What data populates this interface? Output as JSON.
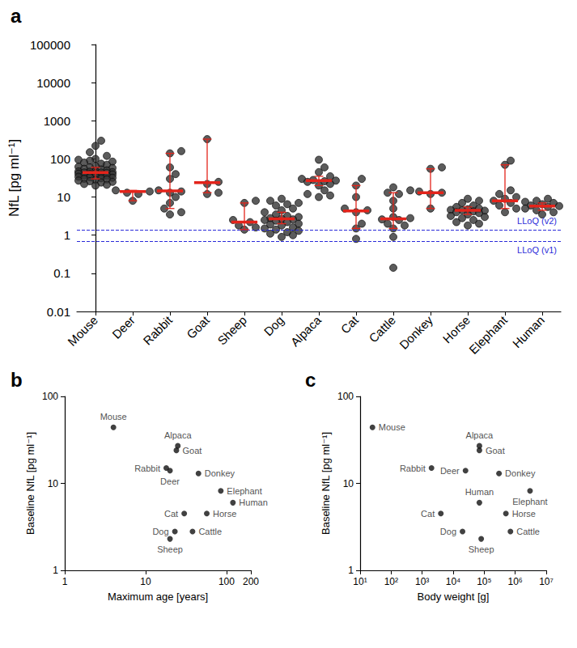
{
  "chart_data": [
    {
      "type": "scatter",
      "title": "a",
      "categories": [
        "Mouse",
        "Deer",
        "Rabbit",
        "Goat",
        "Sheep",
        "Dog",
        "Alpaca",
        "Cat",
        "Cattle",
        "Donkey",
        "Horse",
        "Elephant",
        "Human"
      ],
      "values": [
        [
          300,
          220,
          150,
          120,
          100,
          95,
          90,
          85,
          80,
          75,
          70,
          65,
          62,
          60,
          58,
          55,
          53,
          50,
          48,
          47,
          46,
          45,
          44,
          44,
          43,
          42,
          41,
          40,
          39,
          38,
          37,
          36,
          35,
          34,
          33,
          32,
          31,
          30,
          29,
          28,
          27,
          26,
          25,
          24,
          22,
          21,
          20
        ],
        [
          15,
          14,
          13,
          12,
          8
        ],
        [
          160,
          140,
          60,
          40,
          30,
          15,
          14,
          13,
          10,
          7,
          5,
          4,
          3.5
        ],
        [
          330,
          25,
          22,
          13,
          12
        ],
        [
          8,
          7,
          2.5,
          2.2,
          1.8,
          1.6,
          1.4
        ],
        [
          9,
          8,
          7,
          6.5,
          6,
          5,
          4.5,
          4,
          3.5,
          3.2,
          3,
          2.8,
          2.7,
          2.6,
          2.5,
          2.4,
          2.2,
          2,
          1.9,
          1.8,
          1.6,
          1.5,
          1.4,
          1.3,
          1.2,
          1.1,
          1,
          0.9
        ],
        [
          95,
          60,
          45,
          35,
          30,
          28,
          27,
          26,
          25,
          22,
          20,
          15,
          12,
          11,
          10
        ],
        [
          30,
          20,
          10,
          5,
          4.5,
          4,
          2,
          1.5,
          0.8
        ],
        [
          18,
          15,
          13,
          12,
          8,
          5,
          3,
          2.8,
          2.6,
          2.5,
          2,
          1.8,
          1.5,
          0.9,
          0.14
        ],
        [
          60,
          55,
          14,
          13,
          12,
          5
        ],
        [
          9,
          8,
          7,
          6,
          5.5,
          5,
          4.8,
          4.6,
          4.5,
          4.4,
          4.2,
          4,
          3.8,
          3.5,
          3.2,
          3,
          2.8,
          2.5,
          2.2,
          2,
          1.8
        ],
        [
          90,
          70,
          15,
          12,
          10,
          9,
          8,
          7,
          6,
          5,
          4
        ],
        [
          9,
          8,
          7.5,
          7,
          6.5,
          6,
          5.8,
          5.5,
          5,
          4.5,
          4,
          3.5
        ]
      ],
      "medians": [
        44,
        14,
        14.5,
        24,
        2.2,
        2.7,
        27,
        4.3,
        2.7,
        13,
        4.5,
        8,
        5.8
      ],
      "error_bars": [
        [
          30,
          60
        ],
        [
          8,
          15
        ],
        [
          5,
          140
        ],
        [
          13,
          330
        ],
        [
          1.4,
          7
        ],
        [
          2,
          4
        ],
        [
          20,
          35
        ],
        [
          1.5,
          20
        ],
        [
          1.5,
          13
        ],
        [
          5,
          55
        ],
        [
          3.5,
          5.5
        ],
        [
          5,
          70
        ],
        [
          4.5,
          7
        ]
      ],
      "ylabel": "NfL [pg ml⁻¹]",
      "ylim": [
        0.01,
        100000
      ],
      "yticks": [
        0.01,
        0.1,
        1,
        10,
        100,
        1000,
        10000,
        100000
      ],
      "log": "y",
      "grid": false,
      "color": "#333333",
      "annotations": [
        {
          "label": "LLoQ (v2)",
          "value": 1.4
        },
        {
          "label": "LLoQ (v1)",
          "value": 0.7
        }
      ]
    },
    {
      "type": "scatter",
      "title": "b",
      "labels": [
        "Mouse",
        "Deer",
        "Rabbit",
        "Goat",
        "Sheep",
        "Dog",
        "Alpaca",
        "Cat",
        "Cattle",
        "Donkey",
        "Horse",
        "Elephant",
        "Human"
      ],
      "x": [
        4,
        20,
        18,
        24,
        20,
        23,
        25,
        30,
        38,
        45,
        57,
        85,
        120
      ],
      "values": [
        44,
        14,
        15,
        24,
        2.3,
        2.8,
        27,
        4.5,
        2.8,
        13,
        4.5,
        8.2,
        6
      ],
      "xlabel": "Maximum age [years]",
      "ylabel": "Baseline NfL [pg ml⁻¹]",
      "xlim": [
        1,
        200
      ],
      "xticks": [
        1,
        10,
        100,
        200
      ],
      "ylim": [
        1,
        100
      ],
      "yticks": [
        1,
        10,
        100
      ],
      "log": true,
      "grid": false,
      "color": "#111111"
    },
    {
      "type": "scatter",
      "title": "c",
      "labels": [
        "Mouse",
        "Deer",
        "Rabbit",
        "Goat",
        "Sheep",
        "Dog",
        "Alpaca",
        "Cat",
        "Cattle",
        "Donkey",
        "Horse",
        "Elephant",
        "Human"
      ],
      "x": [
        25,
        25000,
        2000,
        70000,
        80000,
        20000,
        70000,
        4000,
        700000,
        300000,
        500000,
        3000000,
        70000
      ],
      "values": [
        44,
        14,
        15,
        24,
        2.3,
        2.8,
        27,
        4.5,
        2.8,
        13,
        4.5,
        8.2,
        6
      ],
      "xlabel": "Body weight [g]",
      "ylabel": "Baseline NfL [pg ml⁻¹]",
      "xlim": [
        10,
        10000000
      ],
      "xticks": [
        {
          "value": 10,
          "label": "10¹"
        },
        {
          "value": 100,
          "label": "10²"
        },
        {
          "value": 1000,
          "label": "10³"
        },
        {
          "value": 10000,
          "label": "10⁴"
        },
        {
          "value": 100000,
          "label": "10⁵"
        },
        {
          "value": 1000000,
          "label": "10⁶"
        },
        {
          "value": 10000000,
          "label": "10⁷"
        }
      ],
      "ylim": [
        1,
        100
      ],
      "yticks": [
        1,
        10,
        100
      ],
      "log": true,
      "grid": false,
      "color": "#111111"
    }
  ]
}
